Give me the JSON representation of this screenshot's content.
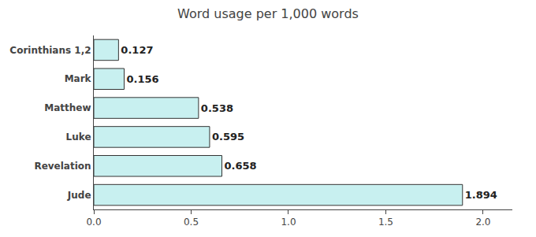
{
  "chart_data": {
    "type": "bar",
    "orientation": "horizontal",
    "title": "Word usage per 1,000 words",
    "categories": [
      "Jude",
      "Revelation",
      "Luke",
      "Matthew",
      "Mark",
      "Corinthians 1,2"
    ],
    "values": [
      1.894,
      0.658,
      0.595,
      0.538,
      0.156,
      0.127
    ],
    "color": "#c8f0f0",
    "xlim": [
      0,
      2.15
    ],
    "xticks": [
      {
        "value": 0,
        "label": "0.0"
      },
      0.5,
      {
        "value": 1,
        "label": "1.0"
      },
      1.5,
      {
        "value": 2,
        "label": "2.0"
      }
    ],
    "grid": false,
    "data_labels": true
  }
}
